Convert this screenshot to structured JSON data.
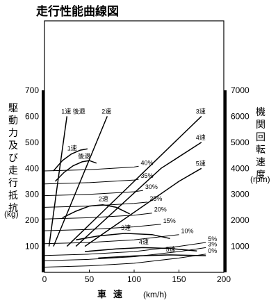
{
  "chart_data": {
    "type": "line",
    "title": "走行性能曲線図",
    "xlabel": "車速",
    "xunit": "(km/h)",
    "ylabel_left": [
      "駆動力",
      "及び",
      "走行抵抗"
    ],
    "yunit_left": "(kg)",
    "ylabel_right": [
      "機関回転速度"
    ],
    "yunit_right": "(rpm)",
    "xlim": [
      0,
      200
    ],
    "ylim": [
      0,
      700
    ],
    "ylim_right": [
      0,
      7000
    ],
    "x_ticks": [
      "0",
      "50",
      "100",
      "150",
      "200"
    ],
    "y_ticks_left": [
      "100",
      "200",
      "300",
      "400",
      "500",
      "600",
      "700"
    ],
    "y_ticks_right": [
      "1000",
      "2000",
      "3000",
      "4000",
      "5000",
      "6000",
      "7000"
    ],
    "grid": false,
    "series": [
      {
        "group": "drive_force",
        "name": "1速",
        "x": [
          10,
          20,
          30,
          40,
          48
        ],
        "y": [
          390,
          430,
          455,
          470,
          475
        ]
      },
      {
        "group": "drive_force",
        "name": "後退",
        "x": [
          12,
          22,
          32,
          42,
          50,
          58
        ],
        "y": [
          350,
          385,
          410,
          425,
          430,
          420
        ]
      },
      {
        "group": "drive_force",
        "name": "2速",
        "x": [
          20,
          35,
          50,
          65,
          80,
          95
        ],
        "y": [
          210,
          235,
          255,
          260,
          250,
          225
        ]
      },
      {
        "group": "drive_force",
        "name": "3速",
        "x": [
          35,
          60,
          90,
          120,
          140
        ],
        "y": [
          125,
          140,
          150,
          145,
          130
        ]
      },
      {
        "group": "drive_force",
        "name": "4速",
        "x": [
          45,
          80,
          110,
          140,
          170
        ],
        "y": [
          80,
          90,
          95,
          92,
          82
        ]
      },
      {
        "group": "drive_force",
        "name": "5速",
        "x": [
          60,
          100,
          140,
          180
        ],
        "y": [
          55,
          63,
          67,
          64
        ]
      },
      {
        "group": "resistance",
        "name": "0%",
        "x": [
          0,
          50,
          100,
          150,
          180
        ],
        "y": [
          20,
          25,
          35,
          55,
          70
        ]
      },
      {
        "group": "resistance",
        "name": "3%",
        "x": [
          0,
          50,
          100,
          150,
          180
        ],
        "y": [
          45,
          50,
          60,
          80,
          95
        ]
      },
      {
        "group": "resistance",
        "name": "5%",
        "x": [
          0,
          50,
          100,
          150,
          180
        ],
        "y": [
          65,
          70,
          80,
          100,
          115
        ]
      },
      {
        "group": "resistance",
        "name": "10%",
        "x": [
          0,
          50,
          100,
          150
        ],
        "y": [
          110,
          115,
          125,
          145
        ]
      },
      {
        "group": "resistance",
        "name": "15%",
        "x": [
          0,
          50,
          100,
          130
        ],
        "y": [
          160,
          165,
          175,
          185
        ]
      },
      {
        "group": "resistance",
        "name": "20%",
        "x": [
          0,
          50,
          100,
          120
        ],
        "y": [
          205,
          210,
          220,
          228
        ]
      },
      {
        "group": "resistance",
        "name": "25%",
        "x": [
          0,
          50,
          100,
          115
        ],
        "y": [
          250,
          255,
          265,
          270
        ]
      },
      {
        "group": "resistance",
        "name": "30%",
        "x": [
          0,
          50,
          100,
          110
        ],
        "y": [
          295,
          300,
          310,
          315
        ]
      },
      {
        "group": "resistance",
        "name": "35%",
        "x": [
          0,
          50,
          100,
          105
        ],
        "y": [
          340,
          345,
          355,
          358
        ]
      },
      {
        "group": "resistance",
        "name": "40%",
        "x": [
          0,
          50,
          100,
          105
        ],
        "y": [
          390,
          395,
          405,
          408
        ]
      },
      {
        "group": "engine_speed",
        "name": "1速 後退",
        "x": [
          5,
          15,
          25
        ],
        "y": [
          1000,
          3500,
          6000
        ]
      },
      {
        "group": "engine_speed",
        "name": "2速",
        "x": [
          10,
          40,
          70
        ],
        "y": [
          1000,
          3500,
          6000
        ]
      },
      {
        "group": "engine_speed",
        "name": "3速",
        "x": [
          25,
          100,
          175
        ],
        "y": [
          1000,
          3500,
          6000
        ]
      },
      {
        "group": "engine_speed",
        "name": "4速",
        "x": [
          35,
          130,
          175
        ],
        "y": [
          1000,
          4000,
          5000
        ]
      },
      {
        "group": "engine_speed",
        "name": "5速",
        "x": [
          45,
          150,
          175
        ],
        "y": [
          1000,
          3500,
          4000
        ]
      }
    ]
  }
}
